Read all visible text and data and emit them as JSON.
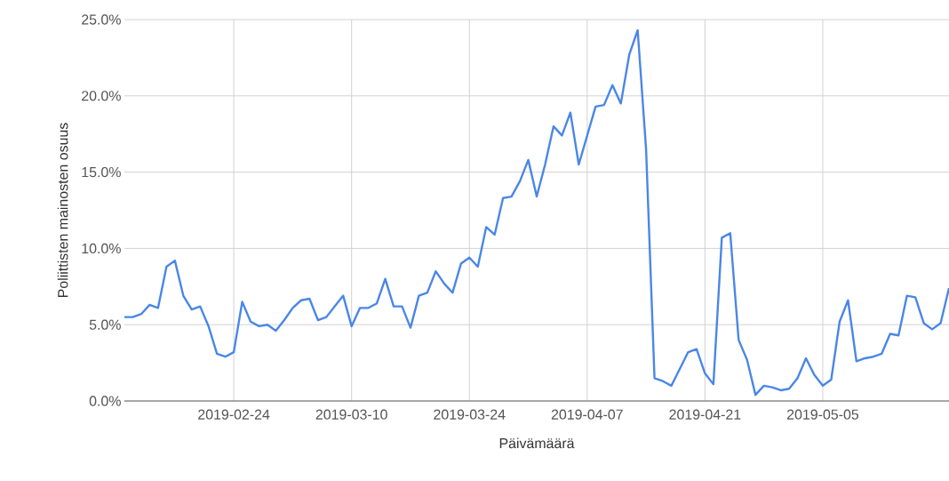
{
  "chart_data": {
    "type": "line",
    "xlabel": "Päivämäärä",
    "ylabel": "Poliittisten mainosten osuus",
    "x": [
      "2019-02-11",
      "2019-02-12",
      "2019-02-13",
      "2019-02-14",
      "2019-02-15",
      "2019-02-16",
      "2019-02-17",
      "2019-02-18",
      "2019-02-19",
      "2019-02-20",
      "2019-02-21",
      "2019-02-22",
      "2019-02-23",
      "2019-02-24",
      "2019-02-25",
      "2019-02-26",
      "2019-02-27",
      "2019-02-28",
      "2019-03-01",
      "2019-03-02",
      "2019-03-03",
      "2019-03-04",
      "2019-03-05",
      "2019-03-06",
      "2019-03-07",
      "2019-03-08",
      "2019-03-09",
      "2019-03-10",
      "2019-03-11",
      "2019-03-12",
      "2019-03-13",
      "2019-03-14",
      "2019-03-15",
      "2019-03-16",
      "2019-03-17",
      "2019-03-18",
      "2019-03-19",
      "2019-03-20",
      "2019-03-21",
      "2019-03-22",
      "2019-03-23",
      "2019-03-24",
      "2019-03-25",
      "2019-03-26",
      "2019-03-27",
      "2019-03-28",
      "2019-03-29",
      "2019-03-30",
      "2019-03-31",
      "2019-04-01",
      "2019-04-02",
      "2019-04-03",
      "2019-04-04",
      "2019-04-05",
      "2019-04-06",
      "2019-04-07",
      "2019-04-08",
      "2019-04-09",
      "2019-04-10",
      "2019-04-11",
      "2019-04-12",
      "2019-04-13",
      "2019-04-14",
      "2019-04-15",
      "2019-04-16",
      "2019-04-17",
      "2019-04-18",
      "2019-04-19",
      "2019-04-20",
      "2019-04-21",
      "2019-04-22",
      "2019-04-23",
      "2019-04-24",
      "2019-04-25",
      "2019-04-26",
      "2019-04-27",
      "2019-04-28",
      "2019-04-29",
      "2019-04-30",
      "2019-05-01",
      "2019-05-02",
      "2019-05-03",
      "2019-05-04",
      "2019-05-05",
      "2019-05-06",
      "2019-05-07",
      "2019-05-08",
      "2019-05-09",
      "2019-05-10",
      "2019-05-11",
      "2019-05-12",
      "2019-05-13",
      "2019-05-14",
      "2019-05-15",
      "2019-05-16",
      "2019-05-17",
      "2019-05-18",
      "2019-05-19",
      "2019-05-20"
    ],
    "values": [
      5.5,
      5.5,
      5.7,
      6.3,
      6.1,
      8.8,
      9.2,
      6.9,
      6.0,
      6.2,
      4.9,
      3.1,
      2.9,
      3.2,
      6.5,
      5.2,
      4.9,
      5.0,
      4.6,
      5.3,
      6.1,
      6.6,
      6.7,
      5.3,
      5.5,
      6.2,
      6.9,
      4.9,
      6.1,
      6.1,
      6.4,
      8.0,
      6.2,
      6.2,
      4.8,
      6.9,
      7.1,
      8.5,
      7.7,
      7.1,
      9.0,
      9.4,
      8.8,
      11.4,
      10.9,
      13.3,
      13.4,
      14.4,
      15.8,
      13.4,
      15.5,
      18.0,
      17.4,
      18.9,
      15.5,
      17.4,
      19.3,
      19.4,
      20.7,
      19.5,
      22.7,
      24.3,
      16.5,
      1.5,
      1.3,
      1.0,
      2.1,
      3.2,
      3.4,
      1.8,
      1.1,
      10.7,
      11.0,
      4.0,
      2.7,
      0.4,
      1.0,
      0.9,
      0.7,
      0.8,
      1.5,
      2.8,
      1.7,
      1.0,
      1.4,
      5.2,
      6.6,
      2.6,
      2.8,
      2.9,
      3.1,
      4.4,
      4.3,
      6.9,
      6.8,
      5.1,
      4.7,
      5.1,
      7.4
    ],
    "color": "#4a86e8",
    "marker": "none",
    "line_style": "solid",
    "grid": true,
    "xlim": [
      "2019-02-11",
      "2019-05-20"
    ],
    "xticks": [
      "2019-02-24",
      "2019-03-10",
      "2019-03-24",
      "2019-04-07",
      "2019-04-21",
      "2019-05-05"
    ],
    "ylim": [
      0,
      25
    ],
    "yticks": [
      {
        "value": 0,
        "label": "0.0%"
      },
      {
        "value": 5,
        "label": "5.0%"
      },
      {
        "value": 10,
        "label": "10.0%"
      },
      {
        "value": 15,
        "label": "15.0%"
      },
      {
        "value": 20,
        "label": "20.0%"
      },
      {
        "value": 25,
        "label": "25.0%"
      }
    ]
  }
}
